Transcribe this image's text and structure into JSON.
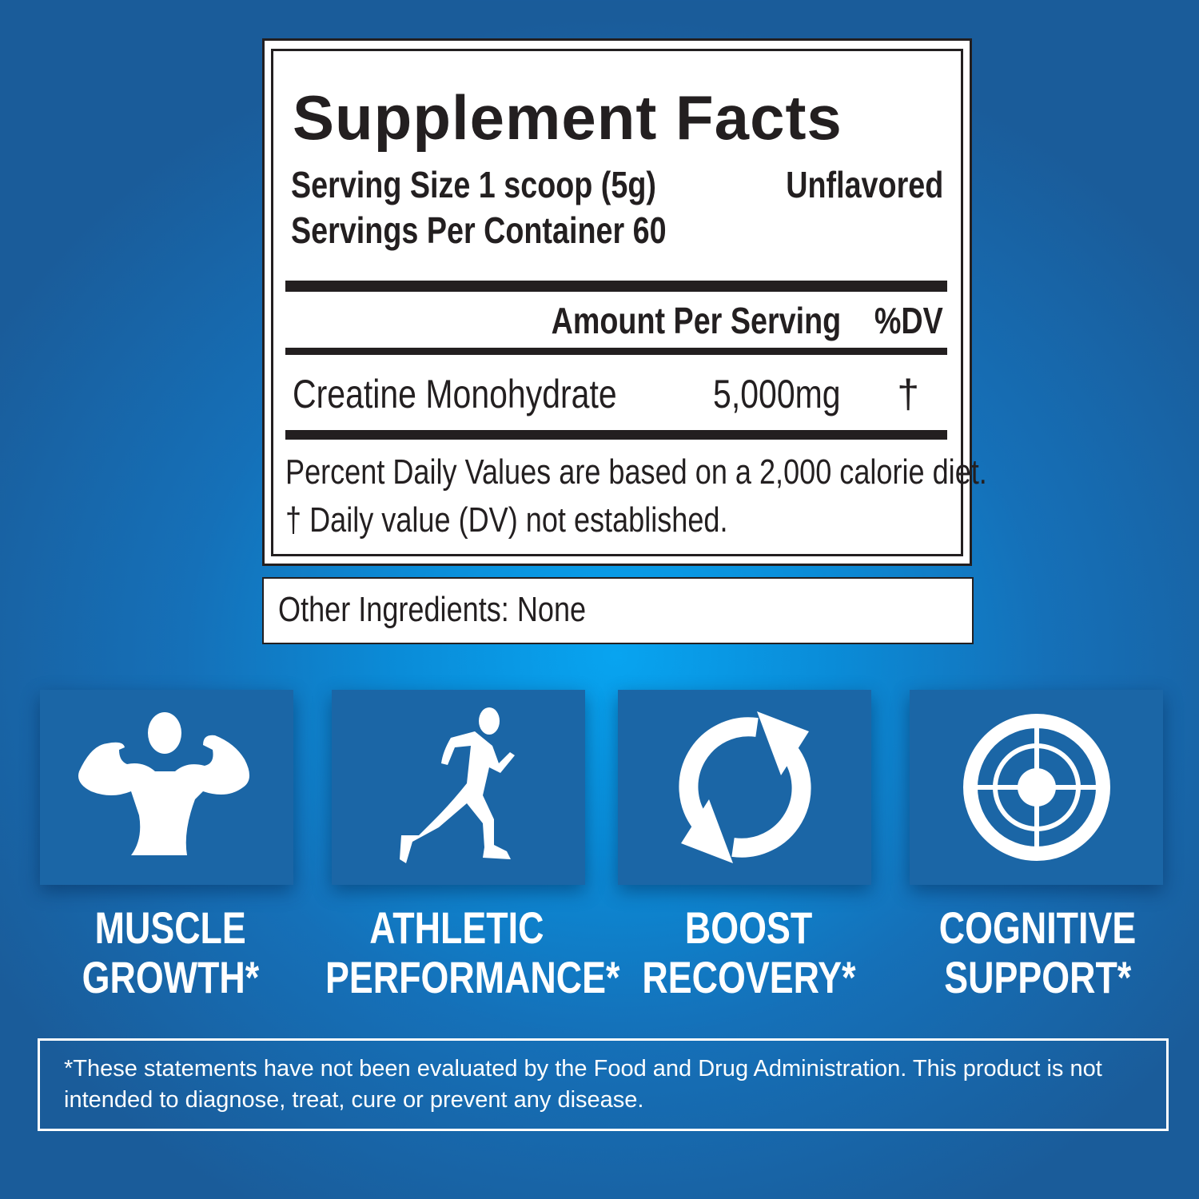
{
  "label": {
    "title": "Supplement Facts",
    "serving_size": "Serving Size 1 scoop (5g)",
    "flavor": "Unflavored",
    "servings_per_container": "Servings Per Container 60",
    "amount_header": "Amount Per Serving",
    "dv_header": "%DV",
    "ingredients": [
      {
        "name": "Creatine Monohydrate",
        "amount": "5,000mg",
        "dv": "†"
      }
    ],
    "footnote_1": "Percent Daily Values are based on a 2,000 calorie diet.",
    "footnote_2": "† Daily value (DV) not established."
  },
  "other_ingredients": "Other Ingredients: None",
  "benefits": [
    {
      "icon": "flexing-man-icon",
      "line1": "MUSCLE",
      "line2": "GROWTH*"
    },
    {
      "icon": "runner-icon",
      "line1": "ATHLETIC",
      "line2": "PERFORMANCE*"
    },
    {
      "icon": "refresh-arrows-icon",
      "line1": "BOOST",
      "line2": "RECOVERY*"
    },
    {
      "icon": "target-icon",
      "line1": "COGNITIVE",
      "line2": "SUPPORT*"
    }
  ],
  "disclaimer": "*These statements have not been evaluated by the Food and Drug Administration. This product is not intended to diagnose, treat, cure or prevent any disease.",
  "colors": {
    "tile": "#1b66a6",
    "background_center": "#08a4f0",
    "background_edge": "#1a5c9a",
    "label_ink": "#231f20"
  }
}
